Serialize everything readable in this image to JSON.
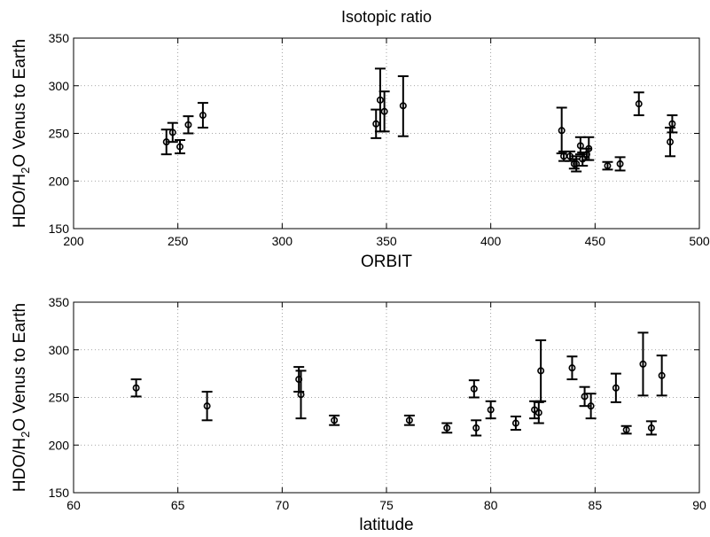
{
  "chart_data": [
    {
      "type": "scatter",
      "title": "Isotopic ratio",
      "xlabel": "ORBIT",
      "ylabel_parts": [
        "HDO/H",
        "2",
        "O Venus to Earth"
      ],
      "xlim": [
        200,
        500
      ],
      "ylim": [
        150,
        350
      ],
      "xticks": [
        "200",
        "250",
        "300",
        "350",
        "400",
        "450",
        "500"
      ],
      "yticks": [
        "150",
        "200",
        "250",
        "300",
        "350"
      ],
      "grid": true,
      "error_bars": true,
      "points": [
        {
          "x": 244.5,
          "y": 241,
          "lo": 228,
          "hi": 254
        },
        {
          "x": 247.5,
          "y": 251,
          "lo": 241,
          "hi": 261
        },
        {
          "x": 251.0,
          "y": 236,
          "lo": 229,
          "hi": 243
        },
        {
          "x": 255.0,
          "y": 259,
          "lo": 250,
          "hi": 268
        },
        {
          "x": 262.0,
          "y": 269,
          "lo": 256,
          "hi": 282
        },
        {
          "x": 345.0,
          "y": 260,
          "lo": 245,
          "hi": 275
        },
        {
          "x": 347.0,
          "y": 285,
          "lo": 252,
          "hi": 318
        },
        {
          "x": 349.0,
          "y": 273,
          "lo": 252,
          "hi": 294
        },
        {
          "x": 358.0,
          "y": 279,
          "lo": 247,
          "hi": 310
        },
        {
          "x": 434.0,
          "y": 253,
          "lo": 229,
          "hi": 277
        },
        {
          "x": 435.0,
          "y": 226,
          "lo": 221,
          "hi": 231
        },
        {
          "x": 438.0,
          "y": 226,
          "lo": 221,
          "hi": 231
        },
        {
          "x": 440.0,
          "y": 218,
          "lo": 213,
          "hi": 223
        },
        {
          "x": 441.0,
          "y": 218,
          "lo": 210,
          "hi": 226
        },
        {
          "x": 443.0,
          "y": 237,
          "lo": 228,
          "hi": 246
        },
        {
          "x": 444.0,
          "y": 223,
          "lo": 216,
          "hi": 230
        },
        {
          "x": 446.0,
          "y": 228,
          "lo": 222,
          "hi": 234
        },
        {
          "x": 447.0,
          "y": 234,
          "lo": 222,
          "hi": 246
        },
        {
          "x": 456.0,
          "y": 216,
          "lo": 212,
          "hi": 220
        },
        {
          "x": 462.0,
          "y": 218,
          "lo": 211,
          "hi": 225
        },
        {
          "x": 471.0,
          "y": 281,
          "lo": 269,
          "hi": 293
        },
        {
          "x": 486.0,
          "y": 241,
          "lo": 226,
          "hi": 256
        },
        {
          "x": 487.0,
          "y": 260,
          "lo": 251,
          "hi": 269
        }
      ]
    },
    {
      "type": "scatter",
      "title": "",
      "xlabel": "latitude",
      "ylabel_parts": [
        "HDO/H",
        "2",
        "O Venus to Earth"
      ],
      "xlim": [
        60,
        90
      ],
      "ylim": [
        150,
        350
      ],
      "xticks": [
        "60",
        "65",
        "70",
        "75",
        "80",
        "85",
        "90"
      ],
      "yticks": [
        "150",
        "200",
        "250",
        "300",
        "350"
      ],
      "grid": true,
      "error_bars": true,
      "points": [
        {
          "x": 63.0,
          "y": 260,
          "lo": 251,
          "hi": 269
        },
        {
          "x": 66.4,
          "y": 241,
          "lo": 226,
          "hi": 256
        },
        {
          "x": 70.8,
          "y": 269,
          "lo": 256,
          "hi": 282
        },
        {
          "x": 70.9,
          "y": 253,
          "lo": 228,
          "hi": 278
        },
        {
          "x": 72.5,
          "y": 226,
          "lo": 221,
          "hi": 231
        },
        {
          "x": 76.1,
          "y": 226,
          "lo": 221,
          "hi": 231
        },
        {
          "x": 77.9,
          "y": 218,
          "lo": 213,
          "hi": 223
        },
        {
          "x": 79.2,
          "y": 259,
          "lo": 250,
          "hi": 268
        },
        {
          "x": 79.3,
          "y": 218,
          "lo": 210,
          "hi": 226
        },
        {
          "x": 80.0,
          "y": 237,
          "lo": 228,
          "hi": 246
        },
        {
          "x": 81.2,
          "y": 223,
          "lo": 216,
          "hi": 230
        },
        {
          "x": 82.1,
          "y": 237,
          "lo": 228,
          "hi": 246
        },
        {
          "x": 82.3,
          "y": 234,
          "lo": 223,
          "hi": 245
        },
        {
          "x": 82.4,
          "y": 278,
          "lo": 246,
          "hi": 310
        },
        {
          "x": 83.9,
          "y": 281,
          "lo": 269,
          "hi": 293
        },
        {
          "x": 84.5,
          "y": 251,
          "lo": 241,
          "hi": 261
        },
        {
          "x": 84.8,
          "y": 241,
          "lo": 228,
          "hi": 254
        },
        {
          "x": 86.0,
          "y": 260,
          "lo": 245,
          "hi": 275
        },
        {
          "x": 86.5,
          "y": 216,
          "lo": 212,
          "hi": 220
        },
        {
          "x": 87.3,
          "y": 285,
          "lo": 252,
          "hi": 318
        },
        {
          "x": 87.7,
          "y": 218,
          "lo": 211,
          "hi": 225
        },
        {
          "x": 88.2,
          "y": 273,
          "lo": 252,
          "hi": 294
        }
      ]
    }
  ]
}
